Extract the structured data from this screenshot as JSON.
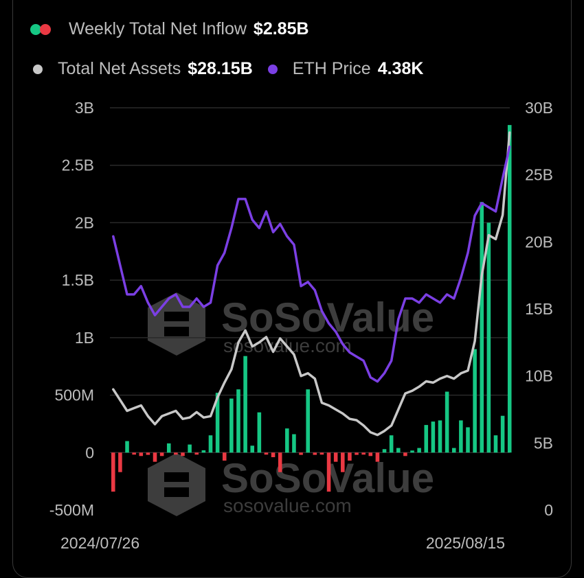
{
  "legend": {
    "inflow": {
      "label": "Weekly Total Net Inflow",
      "value": "$2.85B",
      "colors": [
        "#16c784",
        "#ea3943"
      ]
    },
    "assets": {
      "label": "Total Net Assets",
      "value": "$28.15B",
      "color": "#c8c8c8"
    },
    "price": {
      "label": "ETH Price",
      "value": "4.38K",
      "color": "#7b3fe4"
    }
  },
  "watermark": {
    "brand": "SoSoValue",
    "url": "sosovalue.com"
  },
  "chart_data": {
    "type": "bar",
    "title": "",
    "x_start_label": "2024/07/26",
    "x_end_label": "2025/08/15",
    "left_axis": {
      "ticks": [
        "3B",
        "2.5B",
        "2B",
        "1.5B",
        "1B",
        "500M",
        "0",
        "-500M"
      ],
      "ylim": [
        -0.5,
        3.0
      ],
      "unit": "B USD"
    },
    "right_axis": {
      "ticks": [
        "30B",
        "25B",
        "20B",
        "15B",
        "10B",
        "5B",
        "0"
      ],
      "ylim": [
        0,
        30
      ],
      "unit": "B USD"
    },
    "colors": {
      "positive": "#16c784",
      "negative": "#ea3943",
      "assets": "#c8c8c8",
      "price": "#7b3fe4"
    },
    "series": [
      {
        "name": "Weekly Total Net Inflow",
        "kind": "bar",
        "values": [
          -0.34,
          -0.17,
          0.1,
          -0.01,
          -0.03,
          -0.02,
          -0.08,
          -0.03,
          0.08,
          -0.01,
          -0.03,
          0.07,
          -0.01,
          0.02,
          0.15,
          0.52,
          -0.07,
          0.47,
          0.55,
          0.84,
          0.06,
          0.35,
          -0.01,
          -0.04,
          -0.17,
          0.21,
          0.16,
          -0.02,
          0.55,
          -0.02,
          -0.01,
          -0.34,
          -0.08,
          -0.17,
          -0.07,
          -0.02,
          -0.01,
          -0.03,
          -0.08,
          0.03,
          0.15,
          0.04,
          -0.03,
          0.0,
          0.04,
          0.24,
          0.27,
          0.28,
          0.53,
          0.04,
          0.28,
          0.22,
          0.9,
          2.18,
          2.0,
          0.15,
          0.32,
          2.85
        ]
      },
      {
        "name": "Total Net Assets",
        "kind": "line",
        "values": [
          9.0,
          8.2,
          7.4,
          7.6,
          7.8,
          7.0,
          6.4,
          7.0,
          7.2,
          7.4,
          6.8,
          6.9,
          7.3,
          6.9,
          7.0,
          8.4,
          9.5,
          10.5,
          12.5,
          13.4,
          12.2,
          12.5,
          12.9,
          11.8,
          12.8,
          12.2,
          11.6,
          10.0,
          10.2,
          9.8,
          8.0,
          7.8,
          7.5,
          7.2,
          6.8,
          6.7,
          6.3,
          5.8,
          5.6,
          5.9,
          6.3,
          7.5,
          8.7,
          8.9,
          9.2,
          9.6,
          9.5,
          9.8,
          10.0,
          9.8,
          10.2,
          10.4,
          12.6,
          17.5,
          20.5,
          20.2,
          22.0,
          28.15
        ]
      },
      {
        "name": "ETH Price",
        "kind": "line",
        "values": [
          3.3,
          2.95,
          2.6,
          2.6,
          2.7,
          2.5,
          2.35,
          2.45,
          2.55,
          2.6,
          2.45,
          2.45,
          2.55,
          2.45,
          2.5,
          2.95,
          3.1,
          3.4,
          3.75,
          3.75,
          3.5,
          3.4,
          3.6,
          3.35,
          3.45,
          3.3,
          3.2,
          2.7,
          2.75,
          2.65,
          2.4,
          2.25,
          2.15,
          2.0,
          1.9,
          1.85,
          1.8,
          1.6,
          1.55,
          1.65,
          1.8,
          2.3,
          2.55,
          2.55,
          2.5,
          2.6,
          2.55,
          2.5,
          2.6,
          2.55,
          2.8,
          3.1,
          3.55,
          3.7,
          3.65,
          3.6,
          4.0,
          4.38
        ],
        "ylim_k": [
          0,
          4.85
        ]
      }
    ]
  }
}
